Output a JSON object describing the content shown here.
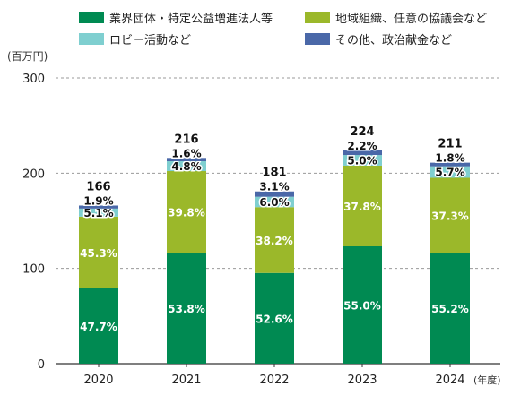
{
  "chart_data": {
    "type": "bar",
    "stacked": true,
    "categories": [
      "2020",
      "2021",
      "2022",
      "2023",
      "2024"
    ],
    "totals": [
      166,
      216,
      181,
      224,
      211
    ],
    "ylim": [
      0,
      300
    ],
    "yticks": [
      0,
      100,
      200,
      300
    ],
    "yunit": "(百万円)",
    "xunit": "(年度)",
    "grid": true,
    "legend_position": "top",
    "series": [
      {
        "name": "業界団体・特定公益増進法人等",
        "color": "#008a52",
        "percent": [
          47.7,
          53.8,
          52.6,
          55.0,
          55.2
        ],
        "labels": [
          "47.7%",
          "53.8%",
          "52.6%",
          "55.0%",
          "55.2%"
        ]
      },
      {
        "name": "地域組織、任意の協議会など",
        "color": "#9bb82a",
        "percent": [
          45.3,
          39.8,
          38.2,
          37.8,
          37.3
        ],
        "labels": [
          "45.3%",
          "39.8%",
          "38.2%",
          "37.8%",
          "37.3%"
        ]
      },
      {
        "name": "ロビー活動など",
        "color": "#7fcfd0",
        "percent": [
          5.1,
          4.8,
          6.0,
          5.0,
          5.7
        ],
        "labels": [
          "5.1%",
          "4.8%",
          "6.0%",
          "5.0%",
          "5.7%"
        ]
      },
      {
        "name": "その他、政治献金など",
        "color": "#4a68a8",
        "percent": [
          1.9,
          1.6,
          3.1,
          2.2,
          1.8
        ],
        "labels": [
          "1.9%",
          "1.6%",
          "3.1%",
          "2.2%",
          "1.8%"
        ]
      }
    ]
  }
}
